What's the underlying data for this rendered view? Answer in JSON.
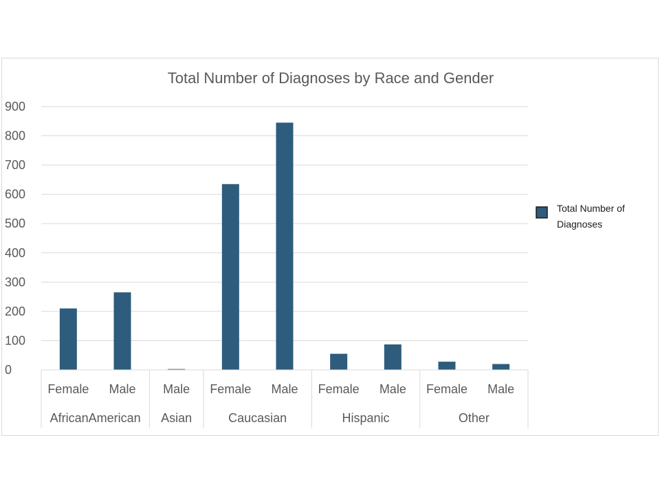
{
  "chart_data": {
    "type": "bar",
    "title": "Total Number of Diagnoses by Race and Gender",
    "xlabel": "",
    "ylabel": "",
    "ylim": [
      0,
      900
    ],
    "yticks": [
      0,
      100,
      200,
      300,
      400,
      500,
      600,
      700,
      800,
      900
    ],
    "grid": true,
    "legend_position": "right",
    "bar_color": "#2e5c7d",
    "groups": [
      {
        "name": "AfricanAmerican",
        "categories": [
          "Female",
          "Male"
        ]
      },
      {
        "name": "Asian",
        "categories": [
          "Male"
        ]
      },
      {
        "name": "Caucasian",
        "categories": [
          "Female",
          "Male"
        ]
      },
      {
        "name": "Hispanic",
        "categories": [
          "Female",
          "Male"
        ]
      },
      {
        "name": "Other",
        "categories": [
          "Female",
          "Male"
        ]
      }
    ],
    "series": [
      {
        "name": "Total Number of Diagnoses",
        "values": [
          210,
          265,
          3,
          635,
          845,
          55,
          87,
          28,
          20
        ]
      }
    ]
  }
}
